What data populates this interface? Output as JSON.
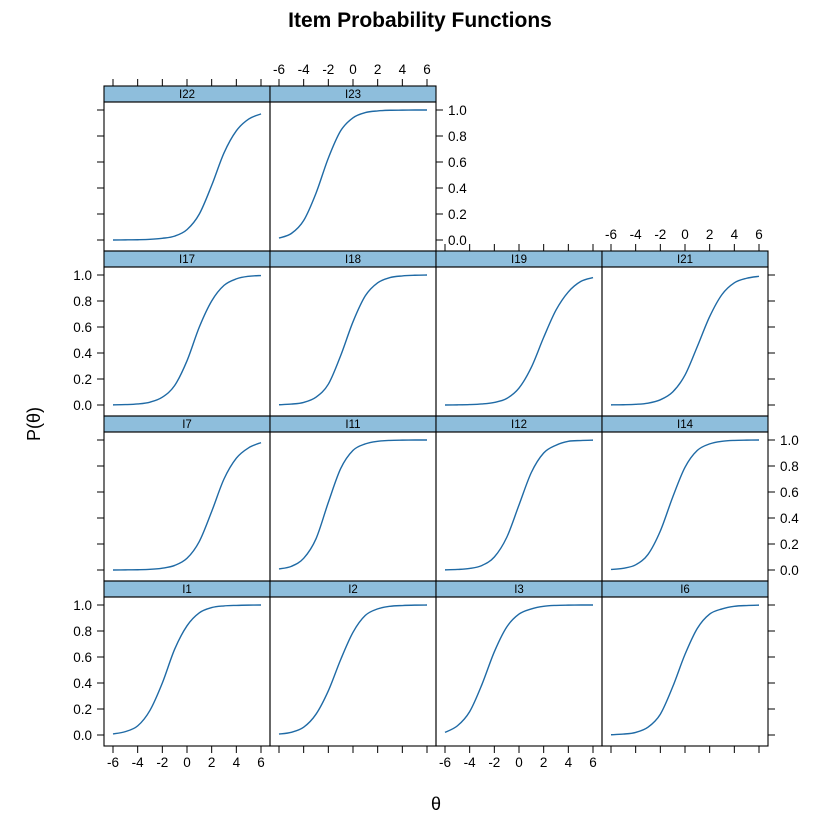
{
  "chart_data": {
    "type": "line",
    "title": "Item Probability Functions",
    "xlabel": "θ",
    "ylabel": "P(θ)",
    "xlim": [
      -6,
      6
    ],
    "ylim": [
      0,
      1
    ],
    "x_ticks": [
      -6,
      -4,
      -2,
      0,
      2,
      4,
      6
    ],
    "x_tick_labels": [
      "-6",
      "-4",
      "-2",
      "0",
      "2",
      "4",
      "6"
    ],
    "y_ticks": [
      0,
      0.2,
      0.4,
      0.6,
      0.8,
      1
    ],
    "y_tick_labels": [
      "0.0",
      "0.2",
      "0.4",
      "0.6",
      "0.8",
      "1.0"
    ],
    "line_color": "#1f6aa5",
    "strip_color": "#8ebedc",
    "layout": "4 columns x 4 rows, bottom-up fill",
    "x": [
      -6,
      -5,
      -4,
      -3,
      -2,
      -1,
      0,
      1,
      2,
      3,
      4,
      5,
      6
    ],
    "panels": [
      {
        "name": "I1",
        "row": 0,
        "col": 0,
        "y": [
          0.008,
          0.026,
          0.07,
          0.19,
          0.4,
          0.66,
          0.84,
          0.94,
          0.98,
          0.993,
          0.997,
          0.999,
          1.0
        ]
      },
      {
        "name": "I2",
        "row": 0,
        "col": 1,
        "y": [
          0.007,
          0.021,
          0.06,
          0.16,
          0.34,
          0.58,
          0.79,
          0.92,
          0.97,
          0.99,
          0.996,
          0.999,
          1.0
        ]
      },
      {
        "name": "I3",
        "row": 0,
        "col": 2,
        "y": [
          0.02,
          0.07,
          0.18,
          0.39,
          0.64,
          0.83,
          0.93,
          0.97,
          0.99,
          0.997,
          0.999,
          1.0,
          1.0
        ]
      },
      {
        "name": "I6",
        "row": 0,
        "col": 3,
        "y": [
          0.002,
          0.007,
          0.02,
          0.06,
          0.16,
          0.37,
          0.62,
          0.82,
          0.93,
          0.97,
          0.99,
          0.996,
          0.999
        ]
      },
      {
        "name": "I7",
        "row": 1,
        "col": 0,
        "y": [
          0.0,
          0.001,
          0.002,
          0.005,
          0.014,
          0.035,
          0.09,
          0.22,
          0.45,
          0.7,
          0.86,
          0.94,
          0.98
        ]
      },
      {
        "name": "I11",
        "row": 1,
        "col": 1,
        "y": [
          0.008,
          0.028,
          0.09,
          0.24,
          0.52,
          0.78,
          0.92,
          0.97,
          0.99,
          0.997,
          0.999,
          1.0,
          1.0
        ]
      },
      {
        "name": "I12",
        "row": 1,
        "col": 2,
        "y": [
          0.001,
          0.004,
          0.012,
          0.035,
          0.1,
          0.25,
          0.5,
          0.75,
          0.9,
          0.96,
          0.99,
          0.996,
          0.999
        ]
      },
      {
        "name": "I14",
        "row": 1,
        "col": 3,
        "y": [
          0.004,
          0.013,
          0.04,
          0.12,
          0.3,
          0.56,
          0.79,
          0.92,
          0.97,
          0.99,
          0.997,
          0.999,
          1.0
        ]
      },
      {
        "name": "I17",
        "row": 2,
        "col": 0,
        "y": [
          0.001,
          0.003,
          0.008,
          0.022,
          0.06,
          0.15,
          0.34,
          0.6,
          0.8,
          0.92,
          0.97,
          0.99,
          0.996
        ]
      },
      {
        "name": "I18",
        "row": 2,
        "col": 1,
        "y": [
          0.002,
          0.007,
          0.02,
          0.06,
          0.16,
          0.38,
          0.64,
          0.84,
          0.94,
          0.98,
          0.993,
          0.998,
          1.0
        ]
      },
      {
        "name": "I19",
        "row": 2,
        "col": 2,
        "y": [
          0.0,
          0.001,
          0.003,
          0.008,
          0.02,
          0.05,
          0.13,
          0.29,
          0.52,
          0.73,
          0.87,
          0.95,
          0.98
        ]
      },
      {
        "name": "I21",
        "row": 2,
        "col": 3,
        "y": [
          0.001,
          0.002,
          0.005,
          0.014,
          0.04,
          0.1,
          0.23,
          0.45,
          0.68,
          0.85,
          0.94,
          0.975,
          0.99
        ]
      },
      {
        "name": "I22",
        "row": 3,
        "col": 0,
        "y": [
          0.0,
          0.001,
          0.002,
          0.005,
          0.013,
          0.03,
          0.08,
          0.2,
          0.42,
          0.67,
          0.84,
          0.93,
          0.97
        ]
      },
      {
        "name": "I23",
        "row": 3,
        "col": 1,
        "y": [
          0.015,
          0.05,
          0.15,
          0.36,
          0.63,
          0.84,
          0.94,
          0.98,
          0.993,
          0.998,
          0.999,
          1.0,
          1.0
        ]
      }
    ]
  }
}
